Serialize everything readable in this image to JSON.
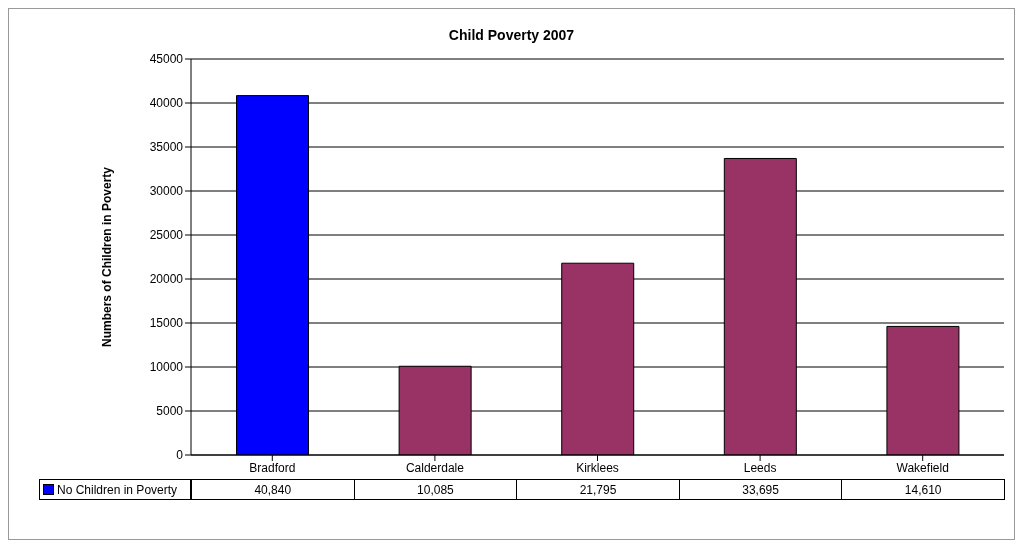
{
  "chart_data": {
    "type": "bar",
    "title": "Child Poverty 2007",
    "ylabel": "Numbers of Children in Poverty",
    "categories": [
      "Bradford",
      "Calderdale",
      "Kirklees",
      "Leeds",
      "Wakefield"
    ],
    "series": [
      {
        "name": "No Children in Poverty",
        "color": "#0000ff",
        "colors": [
          "#0000ff",
          "#993366",
          "#993366",
          "#993366",
          "#993366"
        ],
        "values": [
          40840,
          10085,
          21795,
          33695,
          14610
        ],
        "value_labels": [
          "40,840",
          "10,085",
          "21,795",
          "33,695",
          "14,610"
        ]
      }
    ],
    "ylim": [
      0,
      45000
    ],
    "yticks": [
      0,
      5000,
      10000,
      15000,
      20000,
      25000,
      30000,
      35000,
      40000,
      45000
    ],
    "grid": "y",
    "legend": "bottom left"
  }
}
